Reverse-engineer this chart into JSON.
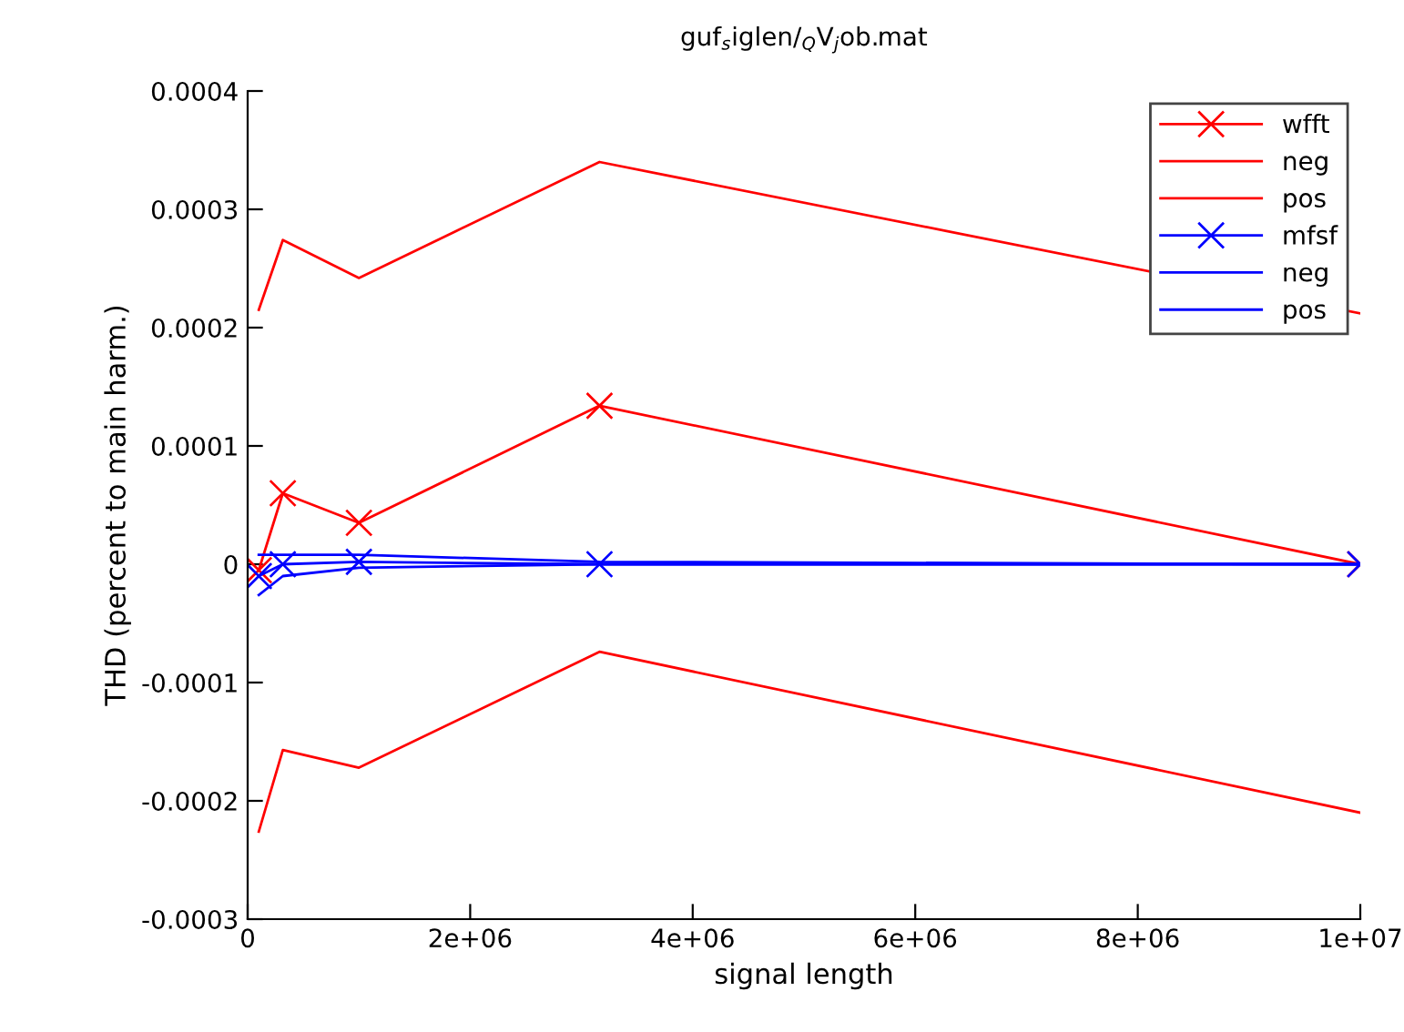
{
  "chart_data": {
    "type": "line",
    "title": "guf$_{s}$iglen/$_{Q}$V$_{j}$ob.mat",
    "xlabel": "signal length",
    "ylabel": "THD (percent to main harm.)",
    "x": [
      100000,
      316228,
      1000000,
      3162278,
      10000000
    ],
    "series": [
      {
        "name": "wfft",
        "color": "#ff0000",
        "marker": "cross",
        "values": [
          -5e-06,
          6e-05,
          3.5e-05,
          0.000134,
          0.0
        ]
      },
      {
        "name": "neg",
        "color": "#ff0000",
        "marker": "none",
        "values": [
          -0.000226,
          -0.000157,
          -0.000172,
          -7.4e-05,
          -0.00021
        ]
      },
      {
        "name": "pos",
        "color": "#ff0000",
        "marker": "none",
        "values": [
          0.000215,
          0.000274,
          0.000242,
          0.00034,
          0.000212
        ]
      },
      {
        "name": "mfsf",
        "color": "#0000ff",
        "marker": "cross",
        "values": [
          -1e-05,
          0.0,
          2e-06,
          0.0,
          0.0
        ]
      },
      {
        "name": "neg",
        "color": "#0000ff",
        "marker": "none",
        "values": [
          -2.6e-05,
          -1e-05,
          -3e-06,
          0.0,
          0.0
        ]
      },
      {
        "name": "pos",
        "color": "#0000ff",
        "marker": "none",
        "values": [
          8e-06,
          8e-06,
          8e-06,
          2e-06,
          0.0
        ]
      }
    ],
    "xlim": [
      0,
      10000000
    ],
    "xticks": [
      0,
      {
        "value": 2000000,
        "label": "2e+06"
      },
      {
        "value": 4000000,
        "label": "4e+06"
      },
      {
        "value": 6000000,
        "label": "6e+06"
      },
      {
        "value": 8000000,
        "label": "8e+06"
      },
      {
        "value": 10000000,
        "label": "1e+07"
      }
    ],
    "ylim": [
      -0.0003,
      0.0004
    ],
    "yticks": [
      -0.0003,
      -0.0002,
      -0.0001,
      0,
      0.0001,
      0.0002,
      0.0003,
      0.0004
    ],
    "grid": false,
    "legend": "top right",
    "line_style": "solid"
  }
}
